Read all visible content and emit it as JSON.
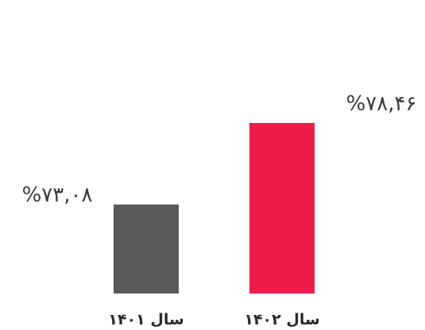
{
  "chart_data": {
    "type": "bar",
    "categories": [
      "سال ۱۴۰۱",
      "سال ۱۴۰۲"
    ],
    "values": [
      73.08,
      78.46
    ],
    "value_labels": [
      "%۷۳,۰۸",
      "%۷۸,۴۶"
    ],
    "colors": [
      "#58595b",
      "#ee1b4b"
    ],
    "title": "",
    "xlabel": "",
    "ylabel": ""
  }
}
